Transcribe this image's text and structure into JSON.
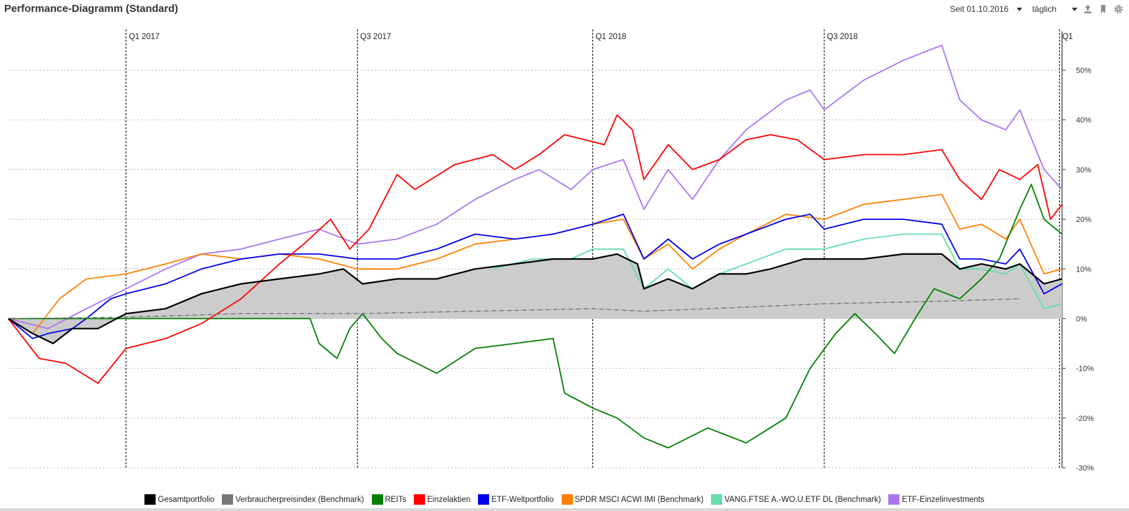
{
  "header": {
    "title": "Performance-Diagramm (Standard)",
    "since_label": "Seit 01.10.2016",
    "interval_label": "täglich",
    "icons": [
      "export-icon",
      "bookmark-icon",
      "gear-icon"
    ]
  },
  "chart_data": {
    "type": "line",
    "title": "Performance-Diagramm (Standard)",
    "x_range": [
      "2016-10-01",
      "2019-01-03"
    ],
    "ylim": [
      -30,
      55
    ],
    "y_ticks": [
      50,
      40,
      30,
      20,
      10,
      0,
      -10,
      -20,
      -30
    ],
    "y_tick_labels": [
      "50%",
      "40%",
      "30%",
      "20%",
      "10%",
      "0%",
      "-10%",
      "-20%",
      "-30%"
    ],
    "y_axis_side": "right",
    "grid": "horizontal dashed",
    "quarter_markers": [
      {
        "date": "2017-01-01",
        "label": "Q1 2017"
      },
      {
        "date": "2017-07-01",
        "label": "Q3 2017"
      },
      {
        "date": "2018-01-01",
        "label": "Q1 2018"
      },
      {
        "date": "2018-07-01",
        "label": "Q3 2018"
      },
      {
        "date": "2019-01-01",
        "label": "Q1"
      }
    ],
    "legend_position": "bottom",
    "series": [
      {
        "name": "Gesamtportfolio",
        "color": "#000000",
        "fill_area": true,
        "fill_color": "#cccccc",
        "points": [
          [
            "2016-10-01",
            0
          ],
          [
            "2016-10-20",
            -3
          ],
          [
            "2016-11-05",
            -5
          ],
          [
            "2016-11-20",
            -2
          ],
          [
            "2016-12-10",
            -2
          ],
          [
            "2017-01-01",
            1
          ],
          [
            "2017-02-01",
            2
          ],
          [
            "2017-03-01",
            5
          ],
          [
            "2017-04-01",
            7
          ],
          [
            "2017-05-01",
            8
          ],
          [
            "2017-06-01",
            9
          ],
          [
            "2017-06-20",
            10
          ],
          [
            "2017-07-05",
            7
          ],
          [
            "2017-08-01",
            8
          ],
          [
            "2017-09-01",
            8
          ],
          [
            "2017-10-01",
            10
          ],
          [
            "2017-11-01",
            11
          ],
          [
            "2017-12-01",
            12
          ],
          [
            "2018-01-01",
            12
          ],
          [
            "2018-01-20",
            13
          ],
          [
            "2018-02-05",
            11
          ],
          [
            "2018-02-10",
            6
          ],
          [
            "2018-03-01",
            8
          ],
          [
            "2018-03-20",
            6
          ],
          [
            "2018-04-10",
            9
          ],
          [
            "2018-05-01",
            9
          ],
          [
            "2018-05-20",
            10
          ],
          [
            "2018-06-15",
            12
          ],
          [
            "2018-07-01",
            12
          ],
          [
            "2018-08-01",
            12
          ],
          [
            "2018-09-01",
            13
          ],
          [
            "2018-10-01",
            13
          ],
          [
            "2018-10-15",
            10
          ],
          [
            "2018-11-01",
            11
          ],
          [
            "2018-11-20",
            10
          ],
          [
            "2018-12-01",
            11
          ],
          [
            "2018-12-20",
            7
          ],
          [
            "2019-01-03",
            8
          ]
        ]
      },
      {
        "name": "Verbraucherpreisindex (Benchmark)",
        "color": "#777777",
        "dashed": true,
        "points": [
          [
            "2016-10-01",
            0
          ],
          [
            "2017-01-01",
            0.3
          ],
          [
            "2017-04-01",
            1
          ],
          [
            "2017-07-01",
            1
          ],
          [
            "2017-10-01",
            1.5
          ],
          [
            "2018-01-01",
            2
          ],
          [
            "2018-02-10",
            1.5
          ],
          [
            "2018-04-01",
            2
          ],
          [
            "2018-07-01",
            3
          ],
          [
            "2018-10-01",
            3.5
          ],
          [
            "2018-12-01",
            4
          ]
        ]
      },
      {
        "name": "REITs",
        "color": "#007f00",
        "points": [
          [
            "2016-10-01",
            0
          ],
          [
            "2017-04-01",
            0
          ],
          [
            "2017-05-25",
            0
          ],
          [
            "2017-06-01",
            -5
          ],
          [
            "2017-06-15",
            -8
          ],
          [
            "2017-06-25",
            -2
          ],
          [
            "2017-07-05",
            1
          ],
          [
            "2017-07-20",
            -4
          ],
          [
            "2017-08-01",
            -7
          ],
          [
            "2017-09-01",
            -11
          ],
          [
            "2017-10-01",
            -6
          ],
          [
            "2017-11-01",
            -5
          ],
          [
            "2017-12-01",
            -4
          ],
          [
            "2017-12-10",
            -15
          ],
          [
            "2018-01-01",
            -18
          ],
          [
            "2018-01-20",
            -20
          ],
          [
            "2018-02-10",
            -24
          ],
          [
            "2018-03-01",
            -26
          ],
          [
            "2018-04-01",
            -22
          ],
          [
            "2018-05-01",
            -25
          ],
          [
            "2018-06-01",
            -20
          ],
          [
            "2018-06-20",
            -10
          ],
          [
            "2018-07-10",
            -3
          ],
          [
            "2018-07-25",
            1
          ],
          [
            "2018-08-10",
            -3
          ],
          [
            "2018-08-25",
            -7
          ],
          [
            "2018-09-10",
            0
          ],
          [
            "2018-09-25",
            6
          ],
          [
            "2018-10-15",
            4
          ],
          [
            "2018-11-01",
            8
          ],
          [
            "2018-11-15",
            12
          ],
          [
            "2018-12-01",
            22
          ],
          [
            "2018-12-10",
            27
          ],
          [
            "2018-12-20",
            20
          ],
          [
            "2019-01-03",
            17
          ]
        ]
      },
      {
        "name": "Einzelaktien",
        "color": "#ff0000",
        "points": [
          [
            "2016-10-01",
            0
          ],
          [
            "2016-10-25",
            -8
          ],
          [
            "2016-11-15",
            -9
          ],
          [
            "2016-12-10",
            -13
          ],
          [
            "2017-01-01",
            -6
          ],
          [
            "2017-02-01",
            -4
          ],
          [
            "2017-03-01",
            -1
          ],
          [
            "2017-04-01",
            4
          ],
          [
            "2017-05-01",
            11
          ],
          [
            "2017-05-20",
            15
          ],
          [
            "2017-06-10",
            20
          ],
          [
            "2017-06-25",
            14
          ],
          [
            "2017-07-10",
            18
          ],
          [
            "2017-08-01",
            29
          ],
          [
            "2017-08-15",
            26
          ],
          [
            "2017-09-15",
            31
          ],
          [
            "2017-10-15",
            33
          ],
          [
            "2017-11-01",
            30
          ],
          [
            "2017-11-20",
            33
          ],
          [
            "2017-12-10",
            37
          ],
          [
            "2018-01-10",
            35
          ],
          [
            "2018-01-20",
            41
          ],
          [
            "2018-02-01",
            38
          ],
          [
            "2018-02-10",
            28
          ],
          [
            "2018-03-01",
            35
          ],
          [
            "2018-03-20",
            30
          ],
          [
            "2018-04-10",
            32
          ],
          [
            "2018-05-01",
            36
          ],
          [
            "2018-05-20",
            37
          ],
          [
            "2018-06-10",
            36
          ],
          [
            "2018-07-01",
            32
          ],
          [
            "2018-08-01",
            33
          ],
          [
            "2018-09-01",
            33
          ],
          [
            "2018-10-01",
            34
          ],
          [
            "2018-10-15",
            28
          ],
          [
            "2018-11-01",
            24
          ],
          [
            "2018-11-15",
            30
          ],
          [
            "2018-12-01",
            28
          ],
          [
            "2018-12-15",
            31
          ],
          [
            "2018-12-25",
            20
          ],
          [
            "2019-01-03",
            23
          ]
        ]
      },
      {
        "name": "ETF-Weltportfolio",
        "color": "#0000ee",
        "points": [
          [
            "2016-10-01",
            0
          ],
          [
            "2016-10-20",
            -4
          ],
          [
            "2016-11-01",
            -3
          ],
          [
            "2016-11-20",
            -2
          ],
          [
            "2016-12-01",
            0
          ],
          [
            "2016-12-20",
            4
          ],
          [
            "2017-01-01",
            5
          ],
          [
            "2017-02-01",
            7
          ],
          [
            "2017-03-01",
            10
          ],
          [
            "2017-04-01",
            12
          ],
          [
            "2017-05-01",
            13
          ],
          [
            "2017-06-01",
            13
          ],
          [
            "2017-07-01",
            12
          ],
          [
            "2017-08-01",
            12
          ],
          [
            "2017-09-01",
            14
          ],
          [
            "2017-10-01",
            17
          ],
          [
            "2017-11-01",
            16
          ],
          [
            "2017-12-01",
            17
          ],
          [
            "2018-01-01",
            19
          ],
          [
            "2018-01-25",
            21
          ],
          [
            "2018-02-10",
            12
          ],
          [
            "2018-03-01",
            16
          ],
          [
            "2018-03-20",
            12
          ],
          [
            "2018-04-10",
            15
          ],
          [
            "2018-05-01",
            17
          ],
          [
            "2018-06-01",
            20
          ],
          [
            "2018-06-20",
            21
          ],
          [
            "2018-07-01",
            18
          ],
          [
            "2018-08-01",
            20
          ],
          [
            "2018-09-01",
            20
          ],
          [
            "2018-10-01",
            19
          ],
          [
            "2018-10-15",
            12
          ],
          [
            "2018-11-01",
            12
          ],
          [
            "2018-11-20",
            11
          ],
          [
            "2018-12-01",
            14
          ],
          [
            "2018-12-20",
            5
          ],
          [
            "2019-01-03",
            7
          ]
        ]
      },
      {
        "name": "SPDR MSCI ACWI IMI  (Benchmark)",
        "color": "#ff8000",
        "points": [
          [
            "2016-10-01",
            0
          ],
          [
            "2016-10-20",
            -3
          ],
          [
            "2016-11-10",
            4
          ],
          [
            "2016-12-01",
            8
          ],
          [
            "2017-01-01",
            9
          ],
          [
            "2017-02-01",
            11
          ],
          [
            "2017-03-01",
            13
          ],
          [
            "2017-04-01",
            12
          ],
          [
            "2017-05-01",
            13
          ],
          [
            "2017-06-01",
            12
          ],
          [
            "2017-07-01",
            10
          ],
          [
            "2017-08-01",
            10
          ],
          [
            "2017-09-01",
            12
          ],
          [
            "2017-10-01",
            15
          ],
          [
            "2017-11-01",
            16
          ],
          [
            "2017-12-01",
            17
          ],
          [
            "2018-01-01",
            19
          ],
          [
            "2018-01-25",
            20
          ],
          [
            "2018-02-10",
            12
          ],
          [
            "2018-03-01",
            15
          ],
          [
            "2018-03-20",
            10
          ],
          [
            "2018-04-10",
            14
          ],
          [
            "2018-05-01",
            17
          ],
          [
            "2018-06-01",
            21
          ],
          [
            "2018-07-01",
            20
          ],
          [
            "2018-08-01",
            23
          ],
          [
            "2018-09-01",
            24
          ],
          [
            "2018-10-01",
            25
          ],
          [
            "2018-10-15",
            18
          ],
          [
            "2018-11-01",
            19
          ],
          [
            "2018-11-20",
            16
          ],
          [
            "2018-12-01",
            20
          ],
          [
            "2018-12-20",
            9
          ],
          [
            "2019-01-03",
            10
          ]
        ]
      },
      {
        "name": "VANG.FTSE A.-WO.U.ETF DL (Benchmark)",
        "color": "#66ddaa",
        "points": [
          [
            "2017-10-15",
            10
          ],
          [
            "2017-11-15",
            12
          ],
          [
            "2017-12-15",
            12
          ],
          [
            "2018-01-01",
            14
          ],
          [
            "2018-01-25",
            14
          ],
          [
            "2018-02-10",
            6
          ],
          [
            "2018-03-01",
            10
          ],
          [
            "2018-03-20",
            6
          ],
          [
            "2018-04-10",
            9
          ],
          [
            "2018-05-01",
            11
          ],
          [
            "2018-06-01",
            14
          ],
          [
            "2018-07-01",
            14
          ],
          [
            "2018-08-01",
            16
          ],
          [
            "2018-09-01",
            17
          ],
          [
            "2018-10-01",
            17
          ],
          [
            "2018-10-15",
            10
          ],
          [
            "2018-11-01",
            10
          ],
          [
            "2018-11-20",
            9
          ],
          [
            "2018-12-01",
            11
          ],
          [
            "2018-12-20",
            2
          ],
          [
            "2019-01-03",
            3
          ]
        ]
      },
      {
        "name": "ETF-Einzelinvestments",
        "color": "#aa77ee",
        "points": [
          [
            "2016-10-01",
            0
          ],
          [
            "2016-11-01",
            -2
          ],
          [
            "2016-12-01",
            2
          ],
          [
            "2017-01-01",
            6
          ],
          [
            "2017-02-01",
            10
          ],
          [
            "2017-03-01",
            13
          ],
          [
            "2017-04-01",
            14
          ],
          [
            "2017-05-01",
            16
          ],
          [
            "2017-06-01",
            18
          ],
          [
            "2017-07-01",
            15
          ],
          [
            "2017-08-01",
            16
          ],
          [
            "2017-09-01",
            19
          ],
          [
            "2017-10-01",
            24
          ],
          [
            "2017-11-01",
            28
          ],
          [
            "2017-11-20",
            30
          ],
          [
            "2017-12-15",
            26
          ],
          [
            "2018-01-01",
            30
          ],
          [
            "2018-01-25",
            32
          ],
          [
            "2018-02-10",
            22
          ],
          [
            "2018-03-01",
            30
          ],
          [
            "2018-03-20",
            24
          ],
          [
            "2018-04-10",
            32
          ],
          [
            "2018-05-01",
            38
          ],
          [
            "2018-06-01",
            44
          ],
          [
            "2018-06-20",
            46
          ],
          [
            "2018-07-01",
            42
          ],
          [
            "2018-08-01",
            48
          ],
          [
            "2018-09-01",
            52
          ],
          [
            "2018-10-01",
            55
          ],
          [
            "2018-10-15",
            44
          ],
          [
            "2018-11-01",
            40
          ],
          [
            "2018-11-20",
            38
          ],
          [
            "2018-12-01",
            42
          ],
          [
            "2018-12-20",
            30
          ],
          [
            "2019-01-03",
            26
          ]
        ]
      }
    ]
  }
}
